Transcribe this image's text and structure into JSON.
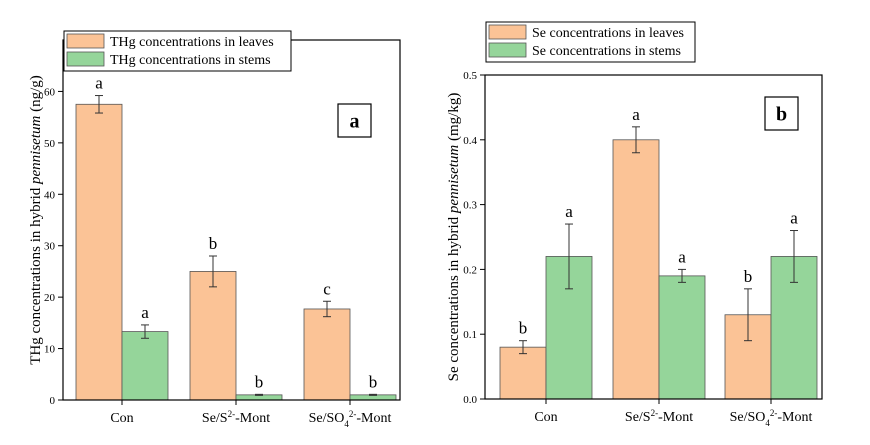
{
  "chart_data": [
    {
      "type": "bar",
      "panel_label": "a",
      "ylabel_parts": [
        "THg concentrations in hybrid ",
        "pennisetum",
        " (ng/g)"
      ],
      "categories": [
        {
          "parts": [
            {
              "t": "Con"
            }
          ]
        },
        {
          "parts": [
            {
              "t": "Se/S"
            },
            {
              "t": "2-",
              "sup": true
            },
            {
              "t": "-Mont"
            }
          ]
        },
        {
          "parts": [
            {
              "t": "Se/SO"
            },
            {
              "t": "4",
              "sub": true
            },
            {
              "t": "2-",
              "sup": true
            },
            {
              "t": "-Mont"
            }
          ]
        }
      ],
      "ylim": [
        0,
        70
      ],
      "yticks": [
        0,
        10,
        20,
        30,
        40,
        50,
        60
      ],
      "ytick_labels": [
        "0",
        "10",
        "20",
        "30",
        "40",
        "50",
        "60"
      ],
      "legend_position": "top-left",
      "series": [
        {
          "name": "THg concentrations in leaves",
          "color": "#FBC396",
          "values": [
            57.5,
            25.0,
            17.7
          ],
          "errors": [
            1.7,
            3.0,
            1.5
          ],
          "letters": [
            "a",
            "b",
            "c"
          ]
        },
        {
          "name": "THg concentrations in stems",
          "color": "#95D59A",
          "values": [
            13.3,
            1.0,
            1.0
          ],
          "errors": [
            1.3,
            0.1,
            0.1
          ],
          "letters": [
            "a",
            "b",
            "b"
          ]
        }
      ]
    },
    {
      "type": "bar",
      "panel_label": "b",
      "ylabel_parts": [
        "Se concentrations in hybrid ",
        "pennisetum",
        " (mg/kg)"
      ],
      "categories": [
        {
          "parts": [
            {
              "t": "Con"
            }
          ]
        },
        {
          "parts": [
            {
              "t": "Se/S"
            },
            {
              "t": "2-",
              "sup": true
            },
            {
              "t": "-Mont"
            }
          ]
        },
        {
          "parts": [
            {
              "t": "Se/SO"
            },
            {
              "t": "4",
              "sub": true
            },
            {
              "t": "2-",
              "sup": true
            },
            {
              "t": "-Mont"
            }
          ]
        }
      ],
      "ylim": [
        0,
        0.5
      ],
      "yticks": [
        0,
        0.1,
        0.2,
        0.3,
        0.4,
        0.5
      ],
      "ytick_labels": [
        "0.0",
        "0.1",
        "0.2",
        "0.3",
        "0.4",
        "0.5"
      ],
      "legend_position": "top-left",
      "series": [
        {
          "name": "Se concentrations in leaves",
          "color": "#FBC396",
          "values": [
            0.08,
            0.4,
            0.13
          ],
          "errors": [
            0.01,
            0.02,
            0.04
          ],
          "letters": [
            "b",
            "a",
            "b"
          ]
        },
        {
          "name": "Se concentrations in stems",
          "color": "#95D59A",
          "values": [
            0.22,
            0.19,
            0.22
          ],
          "errors": [
            0.05,
            0.01,
            0.04
          ],
          "letters": [
            "a",
            "a",
            "a"
          ]
        }
      ]
    }
  ]
}
